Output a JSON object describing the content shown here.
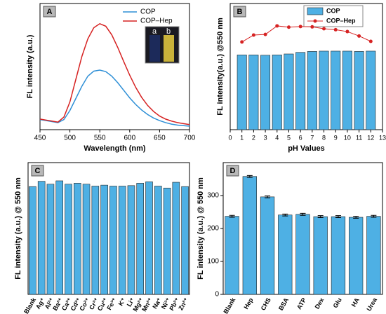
{
  "chart_data": [
    {
      "type": "line",
      "panel_label": "A",
      "xlabel": "Wavelength (nm)",
      "ylabel": "FL intensity (a.u.)",
      "x": [
        450,
        460,
        470,
        480,
        490,
        500,
        510,
        520,
        530,
        540,
        550,
        560,
        570,
        580,
        590,
        600,
        610,
        620,
        630,
        640,
        650,
        660,
        670,
        680,
        690,
        700
      ],
      "series": [
        {
          "name": "COP",
          "color": "#2e8fd6",
          "values": [
            20,
            18,
            16,
            14,
            20,
            38,
            62,
            86,
            106,
            116,
            118,
            115,
            106,
            93,
            78,
            63,
            50,
            39,
            30,
            23,
            18,
            14,
            11,
            9,
            8,
            7
          ]
        },
        {
          "name": "COP–Hep",
          "color": "#d62222",
          "values": [
            21,
            19,
            17,
            15,
            25,
            55,
            100,
            145,
            180,
            202,
            210,
            205,
            188,
            163,
            135,
            108,
            84,
            64,
            48,
            36,
            27,
            21,
            17,
            14,
            12,
            10
          ]
        }
      ],
      "xlim": [
        450,
        700
      ],
      "xticks": [
        450,
        500,
        550,
        600,
        650,
        700
      ],
      "ylim": [
        0,
        250
      ],
      "legend": "upper right",
      "inset_labels": [
        "a",
        "b"
      ]
    },
    {
      "type": "bar",
      "panel_label": "B",
      "xlabel": "pH Values",
      "ylabel": "FL intensity(a.u.) @550 nm",
      "x": [
        1,
        2,
        3,
        4,
        5,
        6,
        7,
        8,
        9,
        10,
        11,
        12
      ],
      "series": [
        {
          "name": "COP",
          "type": "bar",
          "color": "#4eb0e4",
          "values": [
            237,
            237,
            236,
            237,
            240,
            245,
            248,
            249,
            249,
            249,
            248,
            249
          ]
        },
        {
          "name": "COP–Hep",
          "type": "line",
          "color": "#d62222",
          "values": [
            278,
            300,
            302,
            329,
            325,
            327,
            326,
            320,
            317,
            311,
            297,
            280
          ]
        }
      ],
      "xlim": [
        0,
        13
      ],
      "xticks": [
        0,
        1,
        2,
        3,
        4,
        5,
        6,
        7,
        8,
        9,
        10,
        11,
        12,
        13
      ],
      "ylim": [
        0,
        400
      ],
      "legend": "upper right"
    },
    {
      "type": "bar",
      "panel_label": "C",
      "ylabel": "FL intensity (a.u.) @ 550 nm",
      "categories": [
        "Blank",
        "Ag⁺",
        "Al³⁺",
        "Ba²⁺",
        "Ca²⁺",
        "Cd²⁺",
        "Co²⁺",
        "Cr³⁺",
        "Cu²⁺",
        "Fe³⁺",
        "K⁺",
        "Li⁺",
        "Mg²⁺",
        "Mn²⁺",
        "Na⁺",
        "Ni²⁺",
        "Pb²⁺",
        "Zn²⁺"
      ],
      "values": [
        225,
        236,
        230,
        237,
        230,
        232,
        230,
        226,
        228,
        226,
        226,
        227,
        232,
        235,
        226,
        222,
        234,
        225
      ],
      "color": "#4eb0e4",
      "ylim": [
        0,
        275
      ]
    },
    {
      "type": "bar",
      "panel_label": "D",
      "ylabel": "FL intensity (a.u.) @ 550 nm",
      "categories": [
        "Blank",
        "Hep",
        "CHS",
        "BSA",
        "ATP",
        "Dex",
        "Glu",
        "HA",
        "Urea"
      ],
      "values": [
        237,
        358,
        296,
        241,
        243,
        236,
        236,
        234,
        237
      ],
      "errors": [
        3,
        3,
        3,
        3,
        3,
        3,
        3,
        3,
        3
      ],
      "color": "#4eb0e4",
      "ylim": [
        0,
        400
      ],
      "yticks": [
        0,
        100,
        200,
        300
      ]
    }
  ]
}
